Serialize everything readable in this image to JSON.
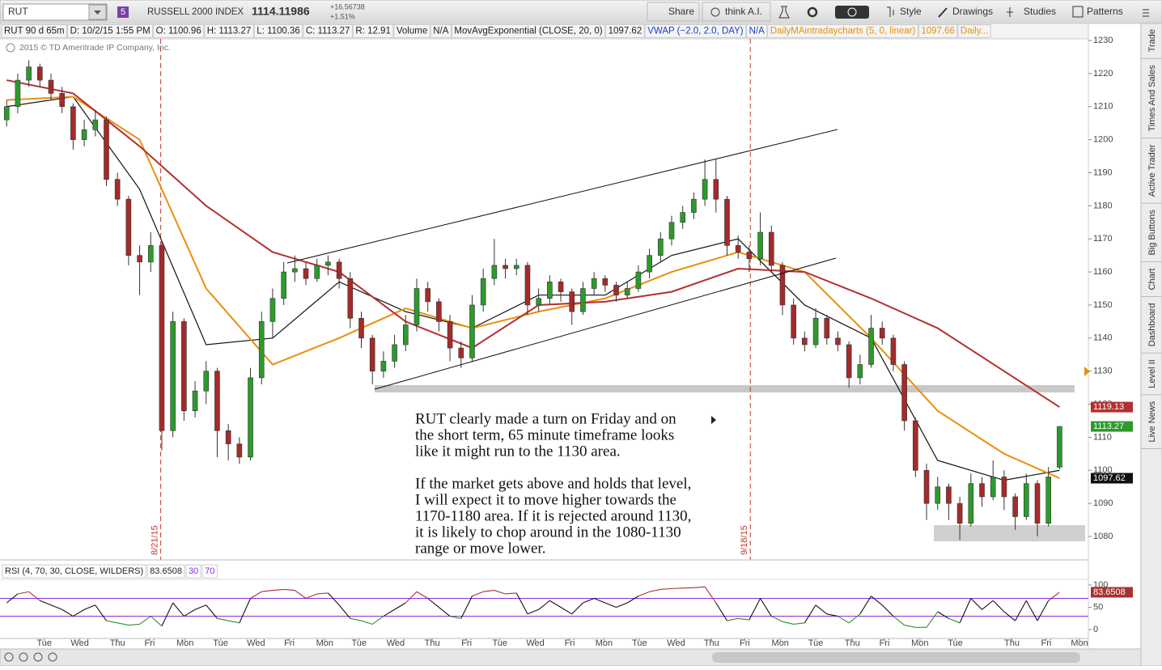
{
  "toolbar": {
    "symbol": "RUT",
    "badge": "5",
    "name": "RUSSELL 2000 INDEX",
    "last": 1114.11986,
    "change": "+16.56738",
    "change_pct": "+1.51%",
    "buttons": [
      "Share",
      "think A.I.",
      "Style",
      "Drawings",
      "Studies",
      "Patterns"
    ]
  },
  "info_bar": [
    "RUT 90 d 65m",
    "D: 10/2/15 1:55 PM",
    "O: 1100.96",
    "H: 1113.27",
    "L: 1100.36",
    "C: 1113.27",
    "R: 12.91",
    "Volume",
    "N/A",
    "MovAvgExponential (CLOSE, 20, 0)",
    "1097.62",
    "VWAP (−2.0, 2.0, DAY)",
    "N/A",
    "DailyMAintradaycharts (5, 0, linear)",
    "1097.66",
    "Daily..."
  ],
  "copyright": "2015 © TD Ameritrade IP Company, Inc.",
  "sidebar": [
    "Trade",
    "Times And Sales",
    "Active Trader",
    "Big Buttons",
    "Chart",
    "Dashboard",
    "Level II",
    "Live News"
  ],
  "chart_data": {
    "type": "candlestick",
    "up_color": "#2c9a2c",
    "down_color": "#a52a2a",
    "xlim": [
      -0.6,
      97.6
    ],
    "ylim": [
      1072.9,
      1230.5
    ],
    "yticks": [
      1080,
      1090,
      1100,
      1110,
      1120,
      1130,
      1140,
      1150,
      1160,
      1170,
      1180,
      1190,
      1200,
      1210,
      1220,
      1230
    ],
    "x_labels": [
      {
        "value": 3.4,
        "label": "Tue"
      },
      {
        "value": 6.6,
        "label": "Wed"
      },
      {
        "value": 10,
        "label": "Thu"
      },
      {
        "value": 12.9,
        "label": "Fri"
      },
      {
        "value": 16.1,
        "label": "Mon"
      },
      {
        "value": 19.3,
        "label": "Tue"
      },
      {
        "value": 22.5,
        "label": "Wed"
      },
      {
        "value": 25.5,
        "label": "Fri"
      },
      {
        "value": 28.7,
        "label": "Mon"
      },
      {
        "value": 31.8,
        "label": "Tue"
      },
      {
        "value": 35.1,
        "label": "Wed"
      },
      {
        "value": 38.4,
        "label": "Thu"
      },
      {
        "value": 41.5,
        "label": "Fri"
      },
      {
        "value": 44.5,
        "label": "Tue"
      },
      {
        "value": 47.7,
        "label": "Wed"
      },
      {
        "value": 50.8,
        "label": "Fri"
      },
      {
        "value": 53.9,
        "label": "Mon"
      },
      {
        "value": 57.1,
        "label": "Tue"
      },
      {
        "value": 60.4,
        "label": "Wed"
      },
      {
        "value": 63.6,
        "label": "Thu"
      },
      {
        "value": 66.6,
        "label": "Fri"
      },
      {
        "value": 69.8,
        "label": "Mon"
      },
      {
        "value": 73,
        "label": "Tue"
      },
      {
        "value": 76.3,
        "label": "Thu"
      },
      {
        "value": 79.2,
        "label": "Fri"
      },
      {
        "value": 82.4,
        "label": "Mon"
      },
      {
        "value": 85.6,
        "label": "Tue"
      },
      {
        "value": 90.7,
        "label": "Thu"
      },
      {
        "value": 93.8,
        "label": "Fri"
      },
      {
        "value": 96.8,
        "label": "Mon"
      }
    ],
    "events": [
      {
        "x": 13.9,
        "label": "8/21/15"
      },
      {
        "x": 67.1,
        "label": "9/18/15"
      }
    ],
    "candles": [
      [
        1206,
        1212,
        1204,
        1210
      ],
      [
        1210,
        1220,
        1208,
        1218
      ],
      [
        1218,
        1224,
        1216,
        1222
      ],
      [
        1222,
        1223,
        1216,
        1218
      ],
      [
        1218,
        1220,
        1212,
        1214
      ],
      [
        1214,
        1216,
        1208,
        1210
      ],
      [
        1210,
        1211,
        1197,
        1200
      ],
      [
        1200,
        1206,
        1198,
        1203
      ],
      [
        1203,
        1209,
        1201,
        1206
      ],
      [
        1206,
        1207,
        1186,
        1188
      ],
      [
        1188,
        1190,
        1180,
        1182
      ],
      [
        1182,
        1183,
        1162,
        1165
      ],
      [
        1165,
        1168,
        1153,
        1163
      ],
      [
        1163,
        1172,
        1160,
        1168
      ],
      [
        1168,
        1169,
        1106,
        1112
      ],
      [
        1112,
        1148,
        1110,
        1145
      ],
      [
        1145,
        1146,
        1115,
        1118
      ],
      [
        1118,
        1127,
        1116,
        1124
      ],
      [
        1124,
        1133,
        1120,
        1130
      ],
      [
        1130,
        1131,
        1104,
        1112
      ],
      [
        1112,
        1114,
        1103,
        1108
      ],
      [
        1108,
        1110,
        1102,
        1104
      ],
      [
        1104,
        1131,
        1103,
        1128
      ],
      [
        1128,
        1148,
        1126,
        1145
      ],
      [
        1145,
        1155,
        1140,
        1152
      ],
      [
        1152,
        1163,
        1150,
        1160
      ],
      [
        1160,
        1165,
        1157,
        1161
      ],
      [
        1161,
        1163,
        1156,
        1158
      ],
      [
        1158,
        1164,
        1157,
        1162
      ],
      [
        1162,
        1165,
        1159,
        1163
      ],
      [
        1163,
        1164,
        1155,
        1158
      ],
      [
        1158,
        1160,
        1143,
        1146
      ],
      [
        1146,
        1148,
        1137,
        1140
      ],
      [
        1140,
        1141,
        1126,
        1130
      ],
      [
        1130,
        1136,
        1128,
        1133
      ],
      [
        1133,
        1141,
        1131,
        1138
      ],
      [
        1138,
        1147,
        1136,
        1144
      ],
      [
        1144,
        1158,
        1142,
        1155
      ],
      [
        1155,
        1157,
        1148,
        1151
      ],
      [
        1151,
        1152,
        1142,
        1145
      ],
      [
        1145,
        1147,
        1133,
        1137
      ],
      [
        1137,
        1139,
        1131,
        1134
      ],
      [
        1134,
        1153,
        1133,
        1150
      ],
      [
        1150,
        1161,
        1148,
        1158
      ],
      [
        1158,
        1170,
        1156,
        1162
      ],
      [
        1162,
        1164,
        1158,
        1161
      ],
      [
        1161,
        1164,
        1159,
        1162
      ],
      [
        1162,
        1163,
        1147,
        1150
      ],
      [
        1150,
        1155,
        1148,
        1152
      ],
      [
        1152,
        1159,
        1150,
        1157
      ],
      [
        1157,
        1158,
        1151,
        1154
      ],
      [
        1154,
        1155,
        1144,
        1148
      ],
      [
        1148,
        1157,
        1147,
        1155
      ],
      [
        1155,
        1160,
        1153,
        1158
      ],
      [
        1158,
        1159,
        1154,
        1156
      ],
      [
        1156,
        1157,
        1151,
        1153
      ],
      [
        1153,
        1157,
        1152,
        1155
      ],
      [
        1155,
        1162,
        1154,
        1160
      ],
      [
        1160,
        1167,
        1158,
        1165
      ],
      [
        1165,
        1172,
        1163,
        1170
      ],
      [
        1170,
        1177,
        1168,
        1175
      ],
      [
        1175,
        1180,
        1173,
        1178
      ],
      [
        1178,
        1184,
        1176,
        1182
      ],
      [
        1182,
        1194,
        1180,
        1188
      ],
      [
        1188,
        1194,
        1178,
        1182
      ],
      [
        1182,
        1183,
        1165,
        1168
      ],
      [
        1168,
        1171,
        1164,
        1166
      ],
      [
        1166,
        1168,
        1160,
        1164
      ],
      [
        1164,
        1178,
        1162,
        1172
      ],
      [
        1172,
        1174,
        1160,
        1162
      ],
      [
        1162,
        1163,
        1147,
        1150
      ],
      [
        1150,
        1152,
        1138,
        1140
      ],
      [
        1140,
        1142,
        1136,
        1138
      ],
      [
        1138,
        1149,
        1137,
        1146
      ],
      [
        1146,
        1147,
        1138,
        1140
      ],
      [
        1140,
        1142,
        1136,
        1138
      ],
      [
        1138,
        1139,
        1125,
        1128
      ],
      [
        1128,
        1135,
        1126,
        1132
      ],
      [
        1132,
        1147,
        1131,
        1143
      ],
      [
        1143,
        1145,
        1138,
        1140
      ],
      [
        1140,
        1141,
        1130,
        1132
      ],
      [
        1132,
        1133,
        1112,
        1115
      ],
      [
        1115,
        1116,
        1098,
        1100
      ],
      [
        1100,
        1102,
        1085,
        1090
      ],
      [
        1090,
        1098,
        1088,
        1095
      ],
      [
        1095,
        1096,
        1085,
        1090
      ],
      [
        1090,
        1092,
        1079,
        1084
      ],
      [
        1084,
        1099,
        1083,
        1096
      ],
      [
        1096,
        1098,
        1089,
        1092
      ],
      [
        1092,
        1103,
        1091,
        1098
      ],
      [
        1098,
        1100,
        1088,
        1092
      ],
      [
        1092,
        1093,
        1082,
        1086
      ],
      [
        1086,
        1099,
        1085,
        1096
      ],
      [
        1096,
        1097,
        1080,
        1084
      ],
      [
        1084,
        1101,
        1083,
        1098
      ],
      [
        1100.96,
        1113.27,
        1100.36,
        1113.27
      ]
    ],
    "line_x": [
      0,
      6,
      12,
      18,
      24,
      30,
      36,
      42,
      48,
      54,
      60,
      66,
      72,
      78,
      84,
      90,
      95
    ],
    "lines": [
      {
        "color": "#111111",
        "values": [
          1210,
          1213,
          1185,
          1138,
          1140,
          1157,
          1148,
          1143,
          1153,
          1153,
          1165,
          1170,
          1150,
          1140,
          1103,
          1097,
          1100
        ]
      },
      {
        "color": "#e8900c",
        "values": [
          1212,
          1213,
          1200,
          1155,
          1132,
          1140,
          1149,
          1143,
          1148,
          1152,
          1160,
          1166,
          1160,
          1140,
          1118,
          1105,
          1097.62
        ]
      },
      {
        "color": "#b33030",
        "values": [
          1218,
          1214,
          1198,
          1180,
          1166,
          1160,
          1145,
          1137,
          1150,
          1151,
          1154,
          1161,
          1160,
          1152,
          1143,
          1130,
          1119.13
        ]
      }
    ],
    "annotation": [
      [
        "RUT clearly made a turn on Friday and on",
        "the short term, 65 minute timeframe looks",
        "like it might run to the 1130 area."
      ],
      [
        "If the market gets above and holds that level,",
        "I will expect it to move higher towards the",
        "1170-1180 area.  If it is rejected around 1130,",
        "it is likely to chop around in the 1080-1130",
        "range or move lower."
      ]
    ],
    "rsi": {
      "title": "RSI (4, 70, 30, CLOSE, WILDERS)",
      "ylim": [
        -18,
        109
      ],
      "yticks": [
        0,
        50,
        100
      ],
      "levels": [
        30,
        70
      ],
      "level_color": "#8a2be2",
      "colors": {
        "high": "#a83232",
        "mid": "#111111",
        "low": "#2f8f2f"
      },
      "values": [
        60,
        80,
        85,
        65,
        55,
        45,
        30,
        45,
        55,
        20,
        15,
        10,
        12,
        30,
        8,
        60,
        30,
        45,
        55,
        25,
        20,
        15,
        70,
        85,
        88,
        90,
        88,
        70,
        80,
        82,
        55,
        25,
        20,
        12,
        30,
        45,
        60,
        85,
        70,
        50,
        30,
        25,
        75,
        85,
        88,
        80,
        82,
        35,
        45,
        65,
        50,
        35,
        60,
        70,
        60,
        50,
        60,
        75,
        85,
        90,
        92,
        93,
        94,
        96,
        60,
        20,
        25,
        22,
        70,
        30,
        18,
        12,
        15,
        55,
        35,
        30,
        15,
        35,
        75,
        55,
        30,
        10,
        5,
        5,
        40,
        25,
        15,
        70,
        45,
        65,
        40,
        20,
        65,
        20,
        65,
        83.6508
      ]
    }
  }
}
